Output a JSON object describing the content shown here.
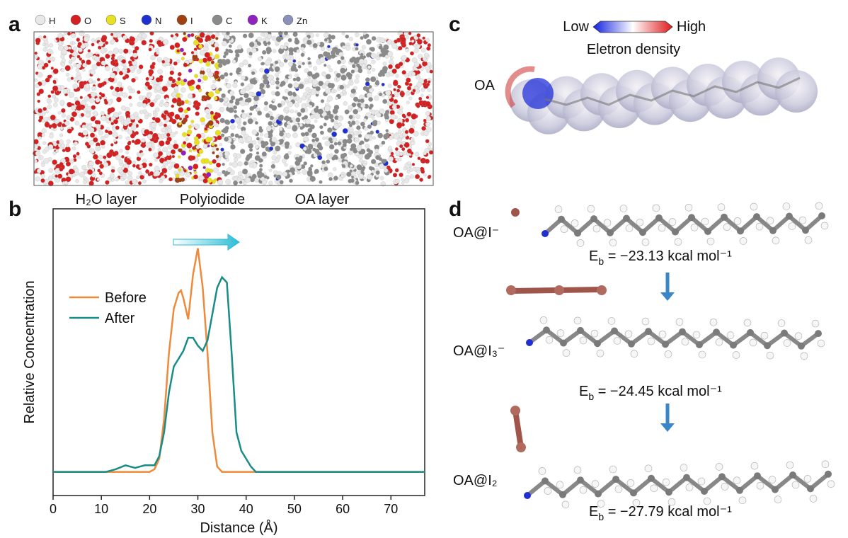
{
  "panel_a": {
    "letter": "a",
    "atoms": [
      {
        "name": "H",
        "color": "#e8e8e8"
      },
      {
        "name": "O",
        "color": "#d42020"
      },
      {
        "name": "S",
        "color": "#e8e020"
      },
      {
        "name": "N",
        "color": "#2030d0"
      },
      {
        "name": "I",
        "color": "#a04010"
      },
      {
        "name": "C",
        "color": "#8a8a8a"
      },
      {
        "name": "K",
        "color": "#9020c0"
      },
      {
        "name": "Zn",
        "color": "#8a90b8"
      }
    ],
    "layers": [
      "H₂O layer",
      "Polyiodide",
      "OA layer"
    ]
  },
  "panel_b": {
    "letter": "b"
  },
  "chart_data": {
    "type": "line",
    "xlabel": "Distance (Å)",
    "ylabel": "Relative Concentration",
    "xlim": [
      0,
      77
    ],
    "xticks": [
      0,
      10,
      20,
      30,
      40,
      50,
      60,
      70
    ],
    "ylim": [
      -0.09,
      1.0
    ],
    "legend": "upper left",
    "series": [
      {
        "name": "Before",
        "color": "#ed8a3c",
        "x": [
          0,
          20,
          21,
          22,
          23,
          24,
          25,
          26,
          26.5,
          27,
          28,
          29,
          30,
          31,
          32,
          33,
          34,
          35,
          77
        ],
        "values": [
          0,
          0,
          0.01,
          0.05,
          0.2,
          0.45,
          0.62,
          0.68,
          0.69,
          0.66,
          0.58,
          0.75,
          0.85,
          0.7,
          0.45,
          0.15,
          0.02,
          0,
          0
        ]
      },
      {
        "name": "After",
        "color": "#1a8c88",
        "x": [
          0,
          11,
          13,
          15,
          17,
          19,
          21,
          22,
          23,
          24,
          25,
          27,
          28,
          29,
          30,
          31,
          32,
          33,
          34,
          35,
          36,
          37,
          38,
          39,
          40,
          41,
          42,
          77
        ],
        "values": [
          0,
          0,
          0.01,
          0.025,
          0.015,
          0.025,
          0.025,
          0.06,
          0.15,
          0.3,
          0.4,
          0.46,
          0.51,
          0.51,
          0.48,
          0.46,
          0.5,
          0.6,
          0.7,
          0.74,
          0.72,
          0.45,
          0.15,
          0.08,
          0.05,
          0.02,
          0,
          0
        ]
      }
    ]
  },
  "panel_c": {
    "letter": "c",
    "low": "Low",
    "high": "High",
    "colorbar_label": "Eletron density",
    "molecule": "OA"
  },
  "panel_d": {
    "letter": "d",
    "complexes": [
      {
        "label": "OA@I⁻",
        "energy": {
          "symbol": "E",
          "subscript": "b",
          "text": " = −23.13 kcal mol⁻¹"
        }
      },
      {
        "label": "OA@I₃⁻",
        "energy": {
          "symbol": "E",
          "subscript": "b",
          "text": " = −24.45 kcal mol⁻¹"
        }
      },
      {
        "label": "OA@I₂",
        "energy": {
          "symbol": "E",
          "subscript": "b",
          "text": " = −27.79 kcal mol⁻¹"
        }
      }
    ]
  }
}
